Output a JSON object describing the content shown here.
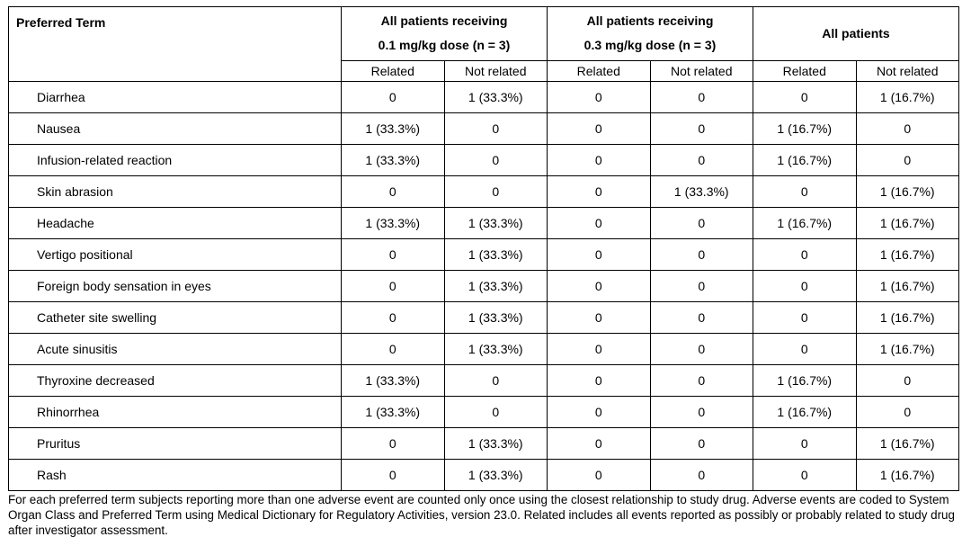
{
  "header": {
    "term_col": "Preferred Term",
    "groups": [
      {
        "line1": "All patients receiving",
        "line2": "0.1 mg/kg dose (n = 3)"
      },
      {
        "line1": "All patients receiving",
        "line2": "0.3 mg/kg dose (n = 3)"
      },
      {
        "line1": "All patients",
        "line2": ""
      }
    ],
    "sub": [
      "Related",
      "Not related",
      "Related",
      "Not related",
      "Related",
      "Not related"
    ]
  },
  "rows": [
    {
      "term": "Diarrhea",
      "v": [
        "0",
        "1 (33.3%)",
        "0",
        "0",
        "0",
        "1 (16.7%)"
      ]
    },
    {
      "term": "Nausea",
      "v": [
        "1 (33.3%)",
        "0",
        "0",
        "0",
        "1 (16.7%)",
        "0"
      ]
    },
    {
      "term": "Infusion-related reaction",
      "v": [
        "1 (33.3%)",
        "0",
        "0",
        "0",
        "1 (16.7%)",
        "0"
      ]
    },
    {
      "term": "Skin abrasion",
      "v": [
        "0",
        "0",
        "0",
        "1 (33.3%)",
        "0",
        "1 (16.7%)"
      ]
    },
    {
      "term": "Headache",
      "v": [
        "1 (33.3%)",
        "1 (33.3%)",
        "0",
        "0",
        "1 (16.7%)",
        "1 (16.7%)"
      ]
    },
    {
      "term": "Vertigo positional",
      "v": [
        "0",
        "1 (33.3%)",
        "0",
        "0",
        "0",
        "1 (16.7%)"
      ]
    },
    {
      "term": "Foreign body sensation in eyes",
      "v": [
        "0",
        "1 (33.3%)",
        "0",
        "0",
        "0",
        "1 (16.7%)"
      ]
    },
    {
      "term": "Catheter site swelling",
      "v": [
        "0",
        "1 (33.3%)",
        "0",
        "0",
        "0",
        "1 (16.7%)"
      ]
    },
    {
      "term": "Acute sinusitis",
      "v": [
        "0",
        "1 (33.3%)",
        "0",
        "0",
        "0",
        "1 (16.7%)"
      ]
    },
    {
      "term": "Thyroxine decreased",
      "v": [
        "1 (33.3%)",
        "0",
        "0",
        "0",
        "1 (16.7%)",
        "0"
      ]
    },
    {
      "term": "Rhinorrhea",
      "v": [
        "1 (33.3%)",
        "0",
        "0",
        "0",
        "1 (16.7%)",
        "0"
      ]
    },
    {
      "term": "Pruritus",
      "v": [
        "0",
        "1 (33.3%)",
        "0",
        "0",
        "0",
        "1 (16.7%)"
      ]
    },
    {
      "term": "Rash",
      "v": [
        "0",
        "1 (33.3%)",
        "0",
        "0",
        "0",
        "1 (16.7%)"
      ]
    }
  ],
  "footnote": "For each preferred term subjects reporting more than one adverse event are counted only once using the closest relationship to study drug. Adverse events are coded to System Organ Class and Preferred Term using Medical Dictionary for Regulatory Activities, version 23.0. Related includes all events reported as possibly or probably related to study drug after investigator assessment."
}
